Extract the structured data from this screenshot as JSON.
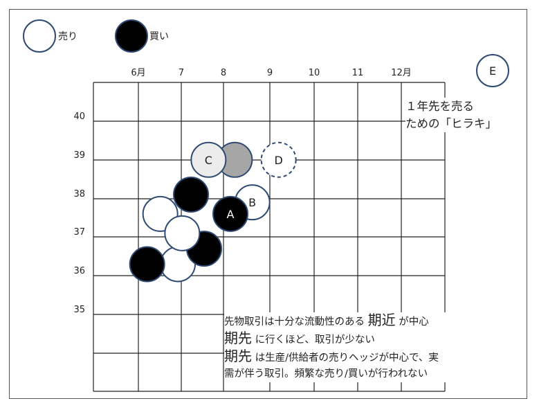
{
  "legend": {
    "sell_label": "売り",
    "buy_label": "買い"
  },
  "months": [
    "6月",
    "7",
    "8",
    "9",
    "10",
    "11",
    "12月"
  ],
  "prices": [
    "40",
    "39",
    "38",
    "37",
    "36",
    "35"
  ],
  "label_e": "E",
  "hiraki_note": [
    "１年先を売る",
    "ための「ヒラキ」"
  ],
  "stones": [
    {
      "kind": "white",
      "label": "",
      "month": 6.5,
      "price": 37.6
    },
    {
      "kind": "white",
      "label": "",
      "month": 6.9,
      "price": 36.3
    },
    {
      "kind": "black",
      "label": "",
      "month": 7.5,
      "price": 36.7
    },
    {
      "kind": "black",
      "label": "",
      "month": 6.2,
      "price": 36.3
    },
    {
      "kind": "white",
      "label": "",
      "month": 7.0,
      "price": 37.1
    },
    {
      "kind": "black",
      "label": "",
      "month": 7.2,
      "price": 38.1
    },
    {
      "kind": "white",
      "label": "B",
      "month": 8.6,
      "price": 37.9
    },
    {
      "kind": "black",
      "label": "A",
      "month": 8.1,
      "price": 37.6
    },
    {
      "kind": "gray",
      "label": "",
      "month": 8.2,
      "price": 39.0
    },
    {
      "kind": "lightgray",
      "label": "C",
      "month": 7.6,
      "price": 39.0
    },
    {
      "kind": "dashed",
      "label": "D",
      "month": 9.2,
      "price": 39.0
    }
  ],
  "note": {
    "line1_pre": "先物取引は十分な流動性のある",
    "line1_big": "期近",
    "line1_post": "が中心",
    "line2_big": "期先",
    "line2_post": "に行くほど、取引が少ない",
    "line3_big": "期先",
    "line3_post": "は生産/供給者の売りヘッジが中心で、実",
    "line4": "需が伴う取引。頻繁な売り/買いが行われない"
  },
  "colors": {
    "black_stone": "#000000",
    "white_stone": "#ffffff",
    "stone_edge": "#2f4a72",
    "gray_stone": "#a6a6a6",
    "light_stone": "#ececec"
  }
}
